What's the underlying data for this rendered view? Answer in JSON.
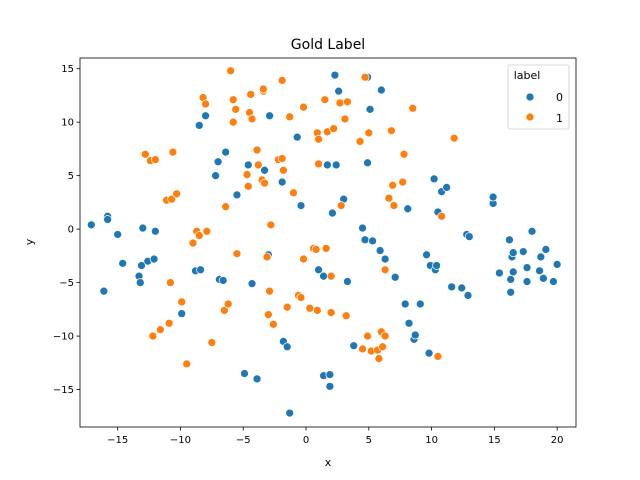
{
  "chart_data": {
    "type": "scatter",
    "title": "Gold Label",
    "xlabel": "x",
    "ylabel": "y",
    "xlim": [
      -18.0,
      21.5
    ],
    "ylim": [
      -18.5,
      16.0
    ],
    "xticks": [
      -15,
      -10,
      -5,
      0,
      5,
      10,
      15,
      20
    ],
    "yticks": [
      -15,
      -10,
      -5,
      0,
      5,
      10,
      15
    ],
    "grid": false,
    "legend": {
      "title": "label",
      "placement": "top-right"
    },
    "colors": {
      "0": "#1f77b4",
      "1": "#ff7f0e"
    },
    "series": [
      {
        "name": "0",
        "points": [
          [
            -17.1,
            0.4
          ],
          [
            -16.1,
            -5.8
          ],
          [
            -15.8,
            1.2
          ],
          [
            -15.8,
            0.9
          ],
          [
            -15.0,
            -0.5
          ],
          [
            -14.6,
            -3.2
          ],
          [
            -13.3,
            -4.4
          ],
          [
            -13.2,
            -5.0
          ],
          [
            -13.1,
            -3.4
          ],
          [
            -13.0,
            0.1
          ],
          [
            -12.6,
            -3.0
          ],
          [
            -12.1,
            -2.8
          ],
          [
            -12.0,
            -0.2
          ],
          [
            -9.9,
            -7.9
          ],
          [
            -8.8,
            -3.9
          ],
          [
            -8.5,
            9.7
          ],
          [
            -8.4,
            -3.8
          ],
          [
            -8.0,
            10.6
          ],
          [
            -7.2,
            5.0
          ],
          [
            -7.0,
            6.3
          ],
          [
            -6.9,
            -4.7
          ],
          [
            -6.6,
            -4.8
          ],
          [
            -6.4,
            7.2
          ],
          [
            -5.5,
            3.2
          ],
          [
            -4.9,
            -13.5
          ],
          [
            -4.6,
            6.0
          ],
          [
            -4.3,
            -5.1
          ],
          [
            -3.9,
            -14.0
          ],
          [
            -3.3,
            5.5
          ],
          [
            -3.0,
            -2.4
          ],
          [
            -2.9,
            10.6
          ],
          [
            -1.9,
            4.4
          ],
          [
            -1.8,
            -10.5
          ],
          [
            -1.5,
            -11.0
          ],
          [
            -1.3,
            -17.2
          ],
          [
            -0.7,
            8.6
          ],
          [
            -0.4,
            2.2
          ],
          [
            1.0,
            -3.8
          ],
          [
            1.4,
            -4.4
          ],
          [
            1.4,
            -13.7
          ],
          [
            1.7,
            6.0
          ],
          [
            1.9,
            -13.6
          ],
          [
            1.9,
            -14.7
          ],
          [
            2.1,
            1.5
          ],
          [
            2.4,
            6.0
          ],
          [
            2.3,
            14.4
          ],
          [
            2.6,
            12.9
          ],
          [
            3.0,
            2.8
          ],
          [
            3.3,
            -4.9
          ],
          [
            3.8,
            -10.9
          ],
          [
            4.5,
            0.1
          ],
          [
            4.7,
            -1.0
          ],
          [
            4.9,
            14.2
          ],
          [
            4.9,
            6.2
          ],
          [
            5.1,
            11.2
          ],
          [
            5.3,
            -1.1
          ],
          [
            5.9,
            -2.0
          ],
          [
            6.0,
            13.0
          ],
          [
            6.3,
            -2.8
          ],
          [
            7.1,
            -4.5
          ],
          [
            7.9,
            -7.0
          ],
          [
            8.1,
            1.9
          ],
          [
            8.2,
            -8.8
          ],
          [
            8.6,
            -10.3
          ],
          [
            8.7,
            -9.9
          ],
          [
            9.1,
            -7.0
          ],
          [
            9.6,
            -2.4
          ],
          [
            9.8,
            -11.6
          ],
          [
            9.9,
            -3.4
          ],
          [
            10.2,
            4.7
          ],
          [
            10.3,
            -3.8
          ],
          [
            10.4,
            -3.4
          ],
          [
            10.5,
            1.6
          ],
          [
            10.8,
            3.5
          ],
          [
            11.2,
            3.9
          ],
          [
            11.6,
            -5.4
          ],
          [
            12.4,
            -5.5
          ],
          [
            12.8,
            -0.5
          ],
          [
            12.9,
            -6.2
          ],
          [
            13.0,
            -0.7
          ],
          [
            14.9,
            2.4
          ],
          [
            14.9,
            3.0
          ],
          [
            15.4,
            -4.1
          ],
          [
            16.2,
            -1.0
          ],
          [
            16.3,
            -4.7
          ],
          [
            16.3,
            -5.9
          ],
          [
            16.4,
            -2.6
          ],
          [
            16.5,
            -4.0
          ],
          [
            16.5,
            -2.2
          ],
          [
            17.3,
            -2.1
          ],
          [
            17.6,
            -4.9
          ],
          [
            17.6,
            -3.6
          ],
          [
            18.0,
            -0.2
          ],
          [
            18.6,
            -3.9
          ],
          [
            18.7,
            -2.6
          ],
          [
            18.9,
            -4.6
          ],
          [
            19.1,
            -1.9
          ],
          [
            19.7,
            -4.9
          ],
          [
            20.0,
            -3.3
          ]
        ]
      },
      {
        "name": "1",
        "points": [
          [
            -12.8,
            7.0
          ],
          [
            -12.4,
            6.4
          ],
          [
            -12.2,
            -10.0
          ],
          [
            -12.0,
            6.5
          ],
          [
            -11.6,
            -9.4
          ],
          [
            -11.1,
            2.7
          ],
          [
            -10.9,
            -8.8
          ],
          [
            -10.8,
            -5.0
          ],
          [
            -10.7,
            2.8
          ],
          [
            -10.6,
            7.2
          ],
          [
            -10.3,
            3.3
          ],
          [
            -9.9,
            -6.8
          ],
          [
            -9.5,
            -12.6
          ],
          [
            -9.0,
            -1.3
          ],
          [
            -8.7,
            -0.2
          ],
          [
            -8.5,
            -0.6
          ],
          [
            -8.2,
            12.3
          ],
          [
            -8.0,
            11.7
          ],
          [
            -7.9,
            -0.2
          ],
          [
            -7.5,
            -10.6
          ],
          [
            -6.5,
            -7.6
          ],
          [
            -6.4,
            2.1
          ],
          [
            -6.2,
            -7.0
          ],
          [
            -6.0,
            14.8
          ],
          [
            -5.8,
            12.1
          ],
          [
            -5.8,
            10.0
          ],
          [
            -5.6,
            11.2
          ],
          [
            -5.5,
            -2.3
          ],
          [
            -4.6,
            4.0
          ],
          [
            -4.7,
            5.1
          ],
          [
            -4.4,
            12.6
          ],
          [
            -4.5,
            10.9
          ],
          [
            -4.3,
            10.3
          ],
          [
            -3.9,
            7.4
          ],
          [
            -3.8,
            6.0
          ],
          [
            -3.5,
            4.6
          ],
          [
            -3.3,
            4.3
          ],
          [
            -3.4,
            12.9
          ],
          [
            -3.4,
            13.1
          ],
          [
            -3.1,
            -2.6
          ],
          [
            -2.9,
            -5.8
          ],
          [
            -3.0,
            -8.0
          ],
          [
            -2.8,
            0.4
          ],
          [
            -2.6,
            -8.9
          ],
          [
            -2.2,
            6.5
          ],
          [
            -1.9,
            6.6
          ],
          [
            -1.9,
            13.9
          ],
          [
            -1.8,
            5.5
          ],
          [
            -1.5,
            -7.3
          ],
          [
            -1.3,
            10.5
          ],
          [
            -1.0,
            3.4
          ],
          [
            -0.6,
            -6.2
          ],
          [
            -0.4,
            -6.4
          ],
          [
            -0.2,
            -2.8
          ],
          [
            -0.2,
            11.4
          ],
          [
            0.3,
            -7.4
          ],
          [
            0.6,
            -1.8
          ],
          [
            0.8,
            -1.9
          ],
          [
            0.9,
            -7.6
          ],
          [
            0.9,
            9.0
          ],
          [
            1.0,
            6.1
          ],
          [
            1.0,
            8.4
          ],
          [
            1.5,
            12.1
          ],
          [
            1.6,
            -1.8
          ],
          [
            1.7,
            9.1
          ],
          [
            2.0,
            -4.4
          ],
          [
            2.0,
            -7.8
          ],
          [
            2.2,
            9.4
          ],
          [
            2.7,
            11.8
          ],
          [
            2.8,
            2.2
          ],
          [
            3.1,
            10.3
          ],
          [
            3.3,
            11.9
          ],
          [
            3.2,
            -8.1
          ],
          [
            4.3,
            8.2
          ],
          [
            4.5,
            -11.2
          ],
          [
            4.7,
            14.2
          ],
          [
            4.9,
            -10.0
          ],
          [
            5.0,
            9.0
          ],
          [
            5.2,
            -11.4
          ],
          [
            5.7,
            -11.3
          ],
          [
            5.8,
            -12.1
          ],
          [
            6.0,
            -9.6
          ],
          [
            6.1,
            -11.0
          ],
          [
            6.3,
            -10.0
          ],
          [
            6.3,
            -3.8
          ],
          [
            6.6,
            2.9
          ],
          [
            6.8,
            9.2
          ],
          [
            6.9,
            4.1
          ],
          [
            7.0,
            2.2
          ],
          [
            7.7,
            4.4
          ],
          [
            7.8,
            7.0
          ],
          [
            8.5,
            11.3
          ],
          [
            10.5,
            -11.9
          ],
          [
            10.8,
            1.2
          ],
          [
            11.8,
            8.5
          ]
        ]
      }
    ]
  }
}
